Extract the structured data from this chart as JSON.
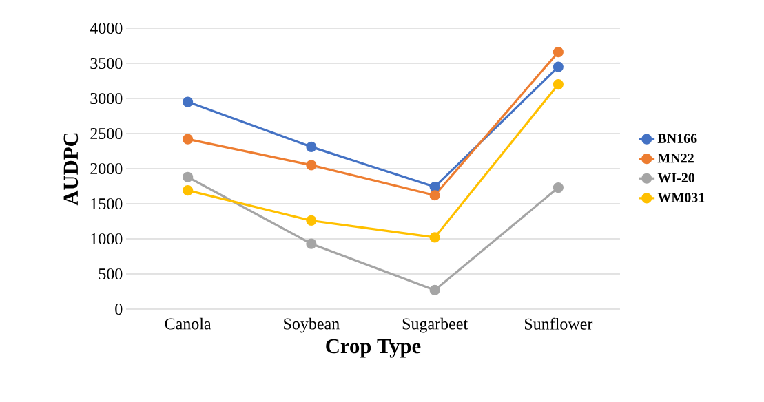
{
  "chart_data": {
    "type": "line",
    "xlabel": "Crop Type",
    "ylabel": "AUDPC",
    "categories": [
      "Canola",
      "Soybean",
      "Sugarbeet",
      "Sunflower"
    ],
    "series": [
      {
        "name": "BN166",
        "color": "#4472c4",
        "values": [
          2950,
          2310,
          1740,
          3450
        ]
      },
      {
        "name": "MN22",
        "color": "#ed7d31",
        "values": [
          2420,
          2050,
          1620,
          3660
        ]
      },
      {
        "name": "WI-20",
        "color": "#a5a5a5",
        "values": [
          1880,
          930,
          270,
          1730
        ]
      },
      {
        "name": "WM031",
        "color": "#ffc000",
        "values": [
          1690,
          1260,
          1020,
          3200
        ]
      }
    ],
    "ylim": [
      0,
      4000
    ],
    "yticks": [
      0,
      500,
      1000,
      1500,
      2000,
      2500,
      3000,
      3500,
      4000
    ],
    "grid": "y",
    "legend": "right",
    "marker": "circle",
    "line_style": "solid"
  }
}
